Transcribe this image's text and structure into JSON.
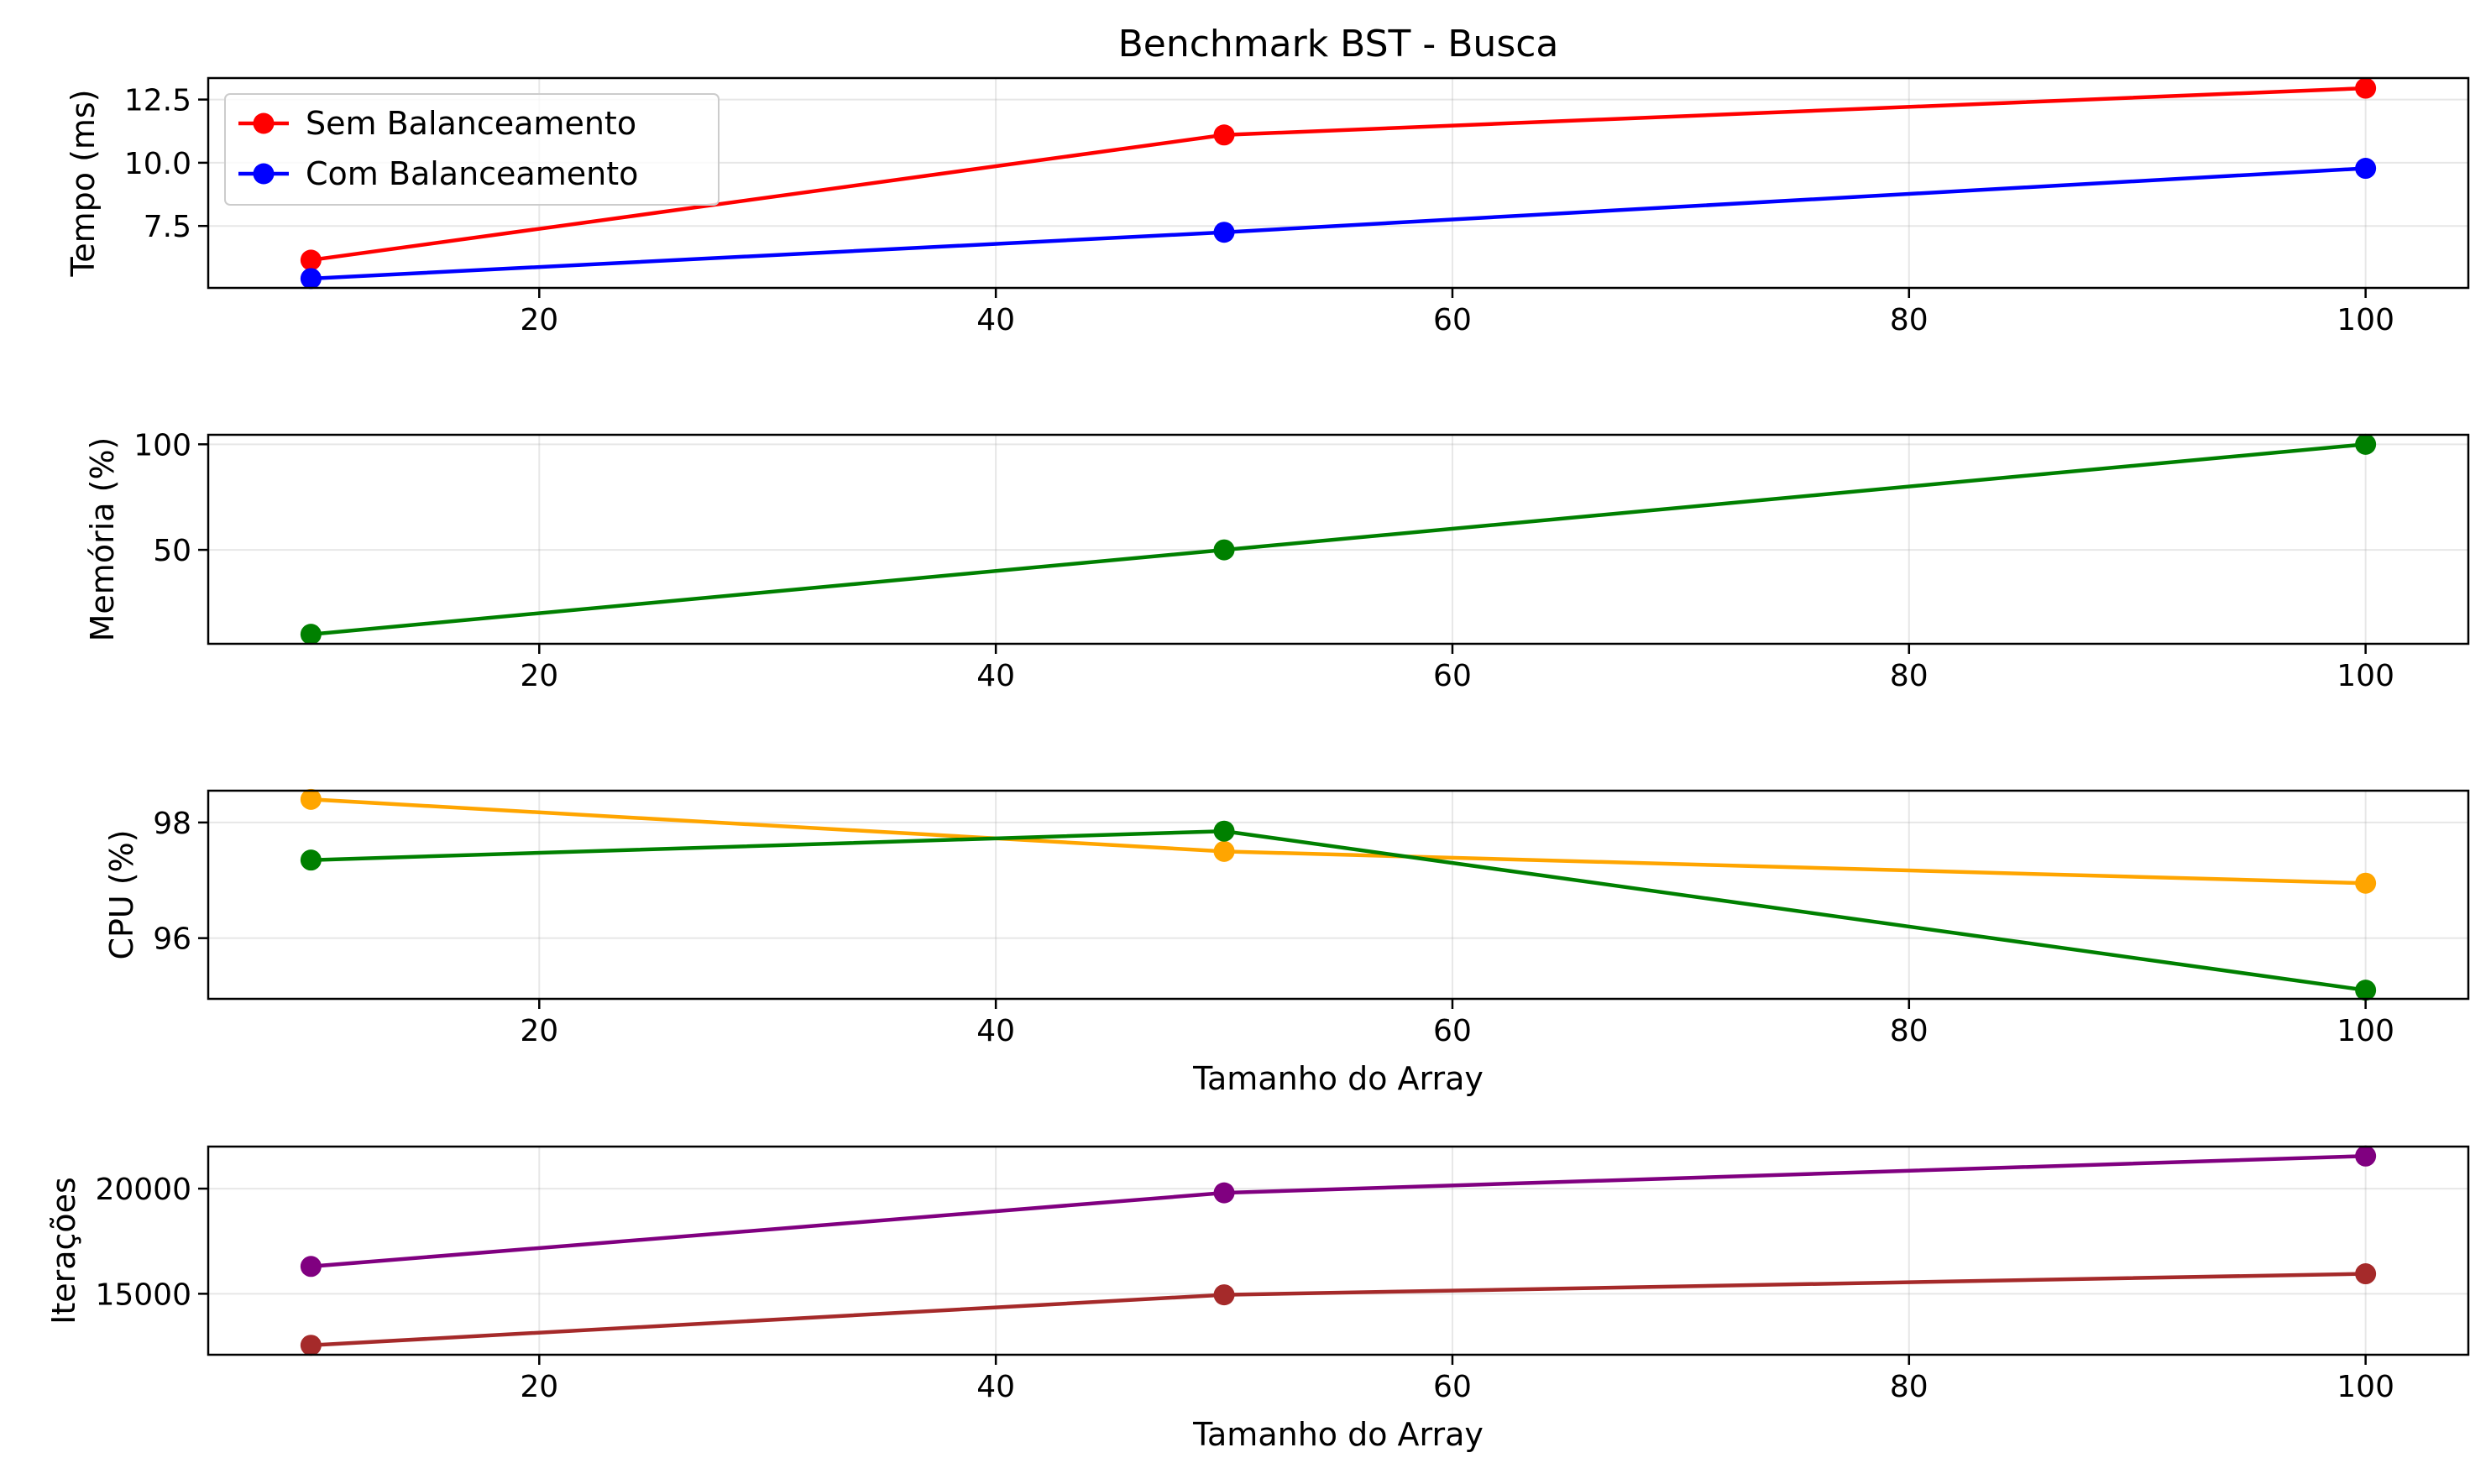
{
  "chart_data": [
    {
      "type": "line",
      "title": "Benchmark BST - Busca",
      "xlabel": "",
      "ylabel": "Tempo (ms)",
      "xlim": [
        5.5,
        104.5
      ],
      "ylim": [
        5.05,
        13.35
      ],
      "x_ticks": [
        20,
        40,
        60,
        80,
        100
      ],
      "y_ticks": [
        7.5,
        10.0,
        12.5
      ],
      "y_tick_labels": [
        "7.5",
        "10.0",
        "12.5"
      ],
      "grid": true,
      "legend": "upper-left",
      "x": [
        10,
        50,
        100
      ],
      "series": [
        {
          "name": "Sem Balanceamento",
          "color": "#ff0000",
          "values": [
            6.15,
            11.1,
            12.95
          ]
        },
        {
          "name": "Com Balanceamento",
          "color": "#0000ff",
          "values": [
            5.42,
            7.25,
            9.78
          ]
        }
      ]
    },
    {
      "type": "line",
      "title": "",
      "xlabel": "",
      "ylabel": "Memória (%)",
      "xlim": [
        5.5,
        104.5
      ],
      "ylim": [
        5.5,
        104.5
      ],
      "x_ticks": [
        20,
        40,
        60,
        80,
        100
      ],
      "y_ticks": [
        50,
        100
      ],
      "y_tick_labels": [
        "50",
        "100"
      ],
      "grid": true,
      "legend": "none",
      "x": [
        10,
        50,
        100
      ],
      "series": [
        {
          "color": "#008000",
          "values": [
            10,
            50,
            100
          ]
        }
      ]
    },
    {
      "type": "line",
      "title": "",
      "xlabel": "Tamanho do Array",
      "ylabel": "CPU (%)",
      "xlim": [
        5.5,
        104.5
      ],
      "ylim": [
        94.95,
        98.55
      ],
      "x_ticks": [
        20,
        40,
        60,
        80,
        100
      ],
      "y_ticks": [
        96,
        98
      ],
      "y_tick_labels": [
        "96",
        "98"
      ],
      "grid": true,
      "legend": "none",
      "x": [
        10,
        50,
        100
      ],
      "series": [
        {
          "color": "#ffa500",
          "values": [
            98.4,
            97.5,
            96.95
          ]
        },
        {
          "color": "#008000",
          "values": [
            97.35,
            97.85,
            95.1
          ]
        }
      ]
    },
    {
      "type": "line",
      "title": "",
      "xlabel": "Tamanho do Array",
      "ylabel": "Iterações",
      "xlim": [
        5.5,
        104.5
      ],
      "ylim": [
        12100,
        22000
      ],
      "x_ticks": [
        20,
        40,
        60,
        80,
        100
      ],
      "y_ticks": [
        15000,
        20000
      ],
      "y_tick_labels": [
        "15000",
        "20000"
      ],
      "grid": true,
      "legend": "none",
      "x": [
        10,
        50,
        100
      ],
      "series": [
        {
          "color": "#800080",
          "values": [
            16300,
            19800,
            21550
          ]
        },
        {
          "color": "#a52a2a",
          "values": [
            12550,
            14950,
            15950
          ]
        }
      ]
    }
  ]
}
